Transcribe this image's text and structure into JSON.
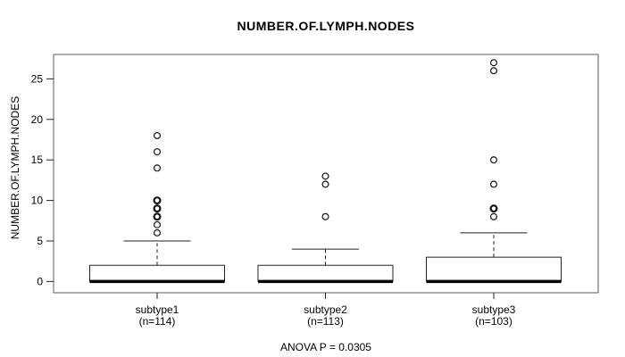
{
  "chart_data": {
    "type": "boxplot",
    "title": "NUMBER.OF.LYMPH.NODES",
    "ylabel": "NUMBER.OF.LYMPH.NODES",
    "xlabel": "",
    "footer": "ANOVA P = 0.0305",
    "yticks": [
      0,
      5,
      10,
      15,
      20,
      25
    ],
    "ylim": [
      -1.4,
      28.1
    ],
    "grid": false,
    "legend": "none",
    "groups": [
      {
        "label": "subtype1",
        "n_label": "(n=114)",
        "n": 114,
        "whisker_low": 0,
        "q1": 0,
        "median": 0,
        "q3": 2,
        "whisker_high": 5,
        "outliers": [
          6,
          7,
          8,
          9,
          10,
          14,
          16,
          18
        ],
        "bold_outliers": [
          8,
          9,
          10
        ]
      },
      {
        "label": "subtype2",
        "n_label": "(n=113)",
        "n": 113,
        "whisker_low": 0,
        "q1": 0,
        "median": 0,
        "q3": 2,
        "whisker_high": 4,
        "outliers": [
          8,
          12,
          13
        ],
        "bold_outliers": []
      },
      {
        "label": "subtype3",
        "n_label": "(n=103)",
        "n": 103,
        "whisker_low": 0,
        "q1": 0,
        "median": 0,
        "q3": 3,
        "whisker_high": 6,
        "outliers": [
          8,
          9,
          12,
          15,
          26,
          27
        ],
        "bold_outliers": [
          9
        ]
      }
    ],
    "colors": {
      "background": "#ffffff",
      "text": "#000000",
      "frame": "#5a5a5a",
      "axis": "#222222",
      "box_stroke": "#222222",
      "box_fill": "#ffffff",
      "median": "#000000",
      "outlier_stroke": "#111111"
    }
  }
}
